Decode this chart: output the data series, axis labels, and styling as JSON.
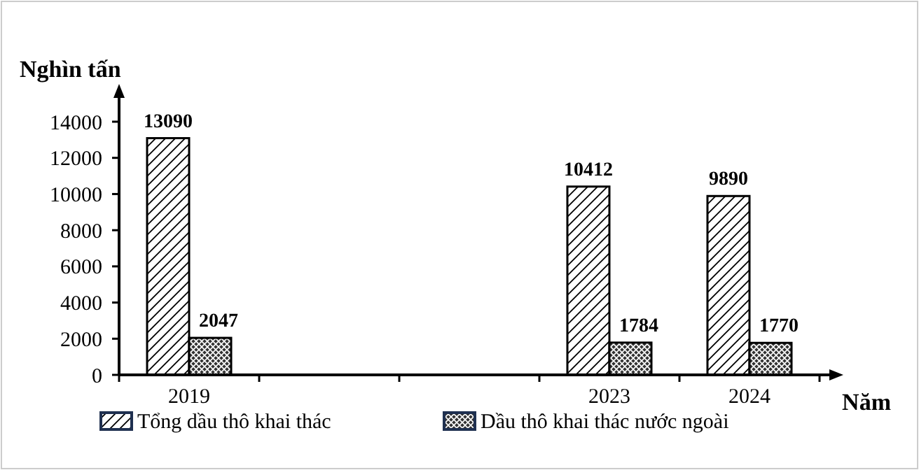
{
  "chart_data": {
    "type": "bar",
    "xlabel": "Năm",
    "ylabel": "Nghìn tấn",
    "categories": [
      "2019",
      null,
      null,
      "2023",
      "2024"
    ],
    "series": [
      {
        "name": "Tổng  dầu thô khai thác",
        "color": "#ffffff",
        "values": [
          13090,
          null,
          null,
          10412,
          9890
        ]
      },
      {
        "name": "Dầu thô  khai thác nước ngoài",
        "color": "#333333",
        "values": [
          2047,
          null,
          null,
          1784,
          1770
        ]
      }
    ],
    "ylim": [
      0,
      14000
    ],
    "yticks": [
      0,
      2000,
      4000,
      6000,
      8000,
      10000,
      12000,
      14000
    ],
    "data_labels": true,
    "grid": false,
    "legend": "bottom"
  }
}
